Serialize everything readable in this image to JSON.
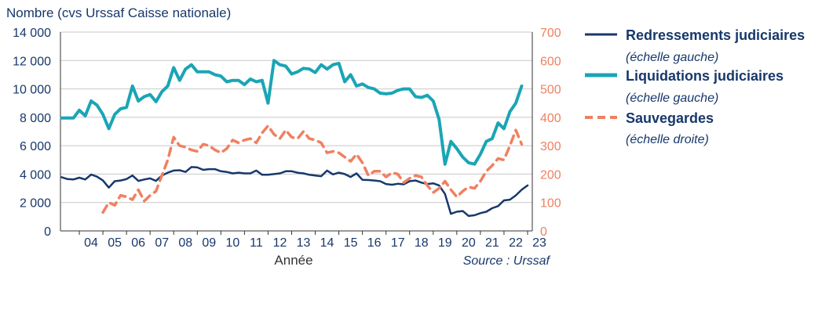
{
  "chart_data": {
    "type": "line",
    "ylabel": "Nombre (cvs Urssaf Caisse nationale)",
    "xlabel": "Année",
    "source": "Source : Urssaf",
    "ylim": [
      0,
      14000
    ],
    "y2lim": [
      0,
      700
    ],
    "yticks": [
      "0",
      "2 000",
      "4 000",
      "6 000",
      "8 000",
      "10 000",
      "12 000",
      "14 000"
    ],
    "y2ticks": [
      "0",
      "100",
      "200",
      "300",
      "400",
      "500",
      "600",
      "700"
    ],
    "xticks": [
      "04",
      "05",
      "06",
      "07",
      "08",
      "09",
      "10",
      "11",
      "12",
      "13",
      "14",
      "15",
      "16",
      "17",
      "18",
      "19",
      "20",
      "21",
      "22",
      "23"
    ],
    "xlim": [
      2003.2,
      2023.2
    ],
    "grid": true,
    "legend_position": "right",
    "series": [
      {
        "name": "Redressements judiciaires",
        "subtitle": "(échelle gauche)",
        "axis": "left",
        "color": "#17386b",
        "style": "solid",
        "points": [
          [
            2003.25,
            3780
          ],
          [
            2003.5,
            3650
          ],
          [
            2003.75,
            3620
          ],
          [
            2004.0,
            3750
          ],
          [
            2004.25,
            3620
          ],
          [
            2004.5,
            3970
          ],
          [
            2004.75,
            3820
          ],
          [
            2005.0,
            3550
          ],
          [
            2005.25,
            3050
          ],
          [
            2005.5,
            3500
          ],
          [
            2005.75,
            3550
          ],
          [
            2006.0,
            3650
          ],
          [
            2006.25,
            3900
          ],
          [
            2006.5,
            3520
          ],
          [
            2006.75,
            3620
          ],
          [
            2007.0,
            3700
          ],
          [
            2007.25,
            3520
          ],
          [
            2007.5,
            3900
          ],
          [
            2007.75,
            4100
          ],
          [
            2008.0,
            4250
          ],
          [
            2008.25,
            4270
          ],
          [
            2008.5,
            4150
          ],
          [
            2008.75,
            4500
          ],
          [
            2009.0,
            4470
          ],
          [
            2009.25,
            4300
          ],
          [
            2009.5,
            4350
          ],
          [
            2009.75,
            4350
          ],
          [
            2010.0,
            4200
          ],
          [
            2010.25,
            4150
          ],
          [
            2010.5,
            4050
          ],
          [
            2010.75,
            4100
          ],
          [
            2011.0,
            4050
          ],
          [
            2011.25,
            4050
          ],
          [
            2011.5,
            4250
          ],
          [
            2011.75,
            3950
          ],
          [
            2012.0,
            3950
          ],
          [
            2012.25,
            4000
          ],
          [
            2012.5,
            4050
          ],
          [
            2012.75,
            4200
          ],
          [
            2013.0,
            4200
          ],
          [
            2013.25,
            4100
          ],
          [
            2013.5,
            4050
          ],
          [
            2013.75,
            3950
          ],
          [
            2014.0,
            3900
          ],
          [
            2014.25,
            3850
          ],
          [
            2014.5,
            4250
          ],
          [
            2014.75,
            3980
          ],
          [
            2015.0,
            4100
          ],
          [
            2015.25,
            4000
          ],
          [
            2015.5,
            3800
          ],
          [
            2015.75,
            4050
          ],
          [
            2016.0,
            3600
          ],
          [
            2016.25,
            3580
          ],
          [
            2016.5,
            3550
          ],
          [
            2016.75,
            3500
          ],
          [
            2017.0,
            3300
          ],
          [
            2017.25,
            3250
          ],
          [
            2017.5,
            3320
          ],
          [
            2017.75,
            3280
          ],
          [
            2018.0,
            3500
          ],
          [
            2018.25,
            3550
          ],
          [
            2018.5,
            3400
          ],
          [
            2018.75,
            3300
          ],
          [
            2019.0,
            3350
          ],
          [
            2019.25,
            3200
          ],
          [
            2019.5,
            2600
          ],
          [
            2019.75,
            1200
          ],
          [
            2020.0,
            1350
          ],
          [
            2020.25,
            1400
          ],
          [
            2020.5,
            1050
          ],
          [
            2020.75,
            1100
          ],
          [
            2021.0,
            1250
          ],
          [
            2021.25,
            1350
          ],
          [
            2021.5,
            1600
          ],
          [
            2021.75,
            1750
          ],
          [
            2022.0,
            2150
          ],
          [
            2022.25,
            2200
          ],
          [
            2022.5,
            2500
          ],
          [
            2022.75,
            2900
          ],
          [
            2023.0,
            3200
          ]
        ]
      },
      {
        "name": "Liquidations judiciaires",
        "subtitle": "(échelle gauche)",
        "axis": "left",
        "color": "#1aa5b5",
        "style": "solid",
        "points": [
          [
            2003.25,
            7950
          ],
          [
            2003.5,
            7950
          ],
          [
            2003.75,
            7950
          ],
          [
            2004.0,
            8500
          ],
          [
            2004.25,
            8100
          ],
          [
            2004.5,
            9150
          ],
          [
            2004.75,
            8850
          ],
          [
            2005.0,
            8200
          ],
          [
            2005.25,
            7200
          ],
          [
            2005.5,
            8200
          ],
          [
            2005.75,
            8600
          ],
          [
            2006.0,
            8700
          ],
          [
            2006.25,
            10200
          ],
          [
            2006.5,
            9150
          ],
          [
            2006.75,
            9450
          ],
          [
            2007.0,
            9600
          ],
          [
            2007.25,
            9100
          ],
          [
            2007.5,
            9800
          ],
          [
            2007.75,
            10200
          ],
          [
            2008.0,
            11500
          ],
          [
            2008.25,
            10600
          ],
          [
            2008.5,
            11400
          ],
          [
            2008.75,
            11700
          ],
          [
            2009.0,
            11200
          ],
          [
            2009.25,
            11200
          ],
          [
            2009.5,
            11200
          ],
          [
            2009.75,
            11000
          ],
          [
            2010.0,
            10900
          ],
          [
            2010.25,
            10500
          ],
          [
            2010.5,
            10600
          ],
          [
            2010.75,
            10600
          ],
          [
            2011.0,
            10300
          ],
          [
            2011.25,
            10700
          ],
          [
            2011.5,
            10500
          ],
          [
            2011.75,
            10600
          ],
          [
            2012.0,
            9000
          ],
          [
            2012.25,
            12000
          ],
          [
            2012.5,
            11700
          ],
          [
            2012.75,
            11600
          ],
          [
            2013.0,
            11050
          ],
          [
            2013.25,
            11200
          ],
          [
            2013.5,
            11450
          ],
          [
            2013.75,
            11400
          ],
          [
            2014.0,
            11150
          ],
          [
            2014.25,
            11700
          ],
          [
            2014.5,
            11400
          ],
          [
            2014.75,
            11700
          ],
          [
            2015.0,
            11800
          ],
          [
            2015.25,
            10500
          ],
          [
            2015.5,
            11000
          ],
          [
            2015.75,
            10200
          ],
          [
            2016.0,
            10350
          ],
          [
            2016.25,
            10100
          ],
          [
            2016.5,
            10000
          ],
          [
            2016.75,
            9700
          ],
          [
            2017.0,
            9650
          ],
          [
            2017.25,
            9700
          ],
          [
            2017.5,
            9900
          ],
          [
            2017.75,
            10000
          ],
          [
            2018.0,
            10000
          ],
          [
            2018.25,
            9450
          ],
          [
            2018.5,
            9400
          ],
          [
            2018.75,
            9550
          ],
          [
            2019.0,
            9150
          ],
          [
            2019.25,
            7850
          ],
          [
            2019.5,
            4700
          ],
          [
            2019.75,
            6300
          ],
          [
            2020.0,
            5800
          ],
          [
            2020.25,
            5200
          ],
          [
            2020.5,
            4800
          ],
          [
            2020.75,
            4700
          ],
          [
            2021.0,
            5400
          ],
          [
            2021.25,
            6300
          ],
          [
            2021.5,
            6500
          ],
          [
            2021.75,
            7600
          ],
          [
            2022.0,
            7200
          ],
          [
            2022.25,
            8400
          ],
          [
            2022.5,
            9000
          ],
          [
            2022.75,
            10200
          ]
        ]
      },
      {
        "name": "Sauvegardes",
        "subtitle": "(échelle droite)",
        "axis": "right",
        "color": "#f08060",
        "style": "dashed",
        "points": [
          [
            2005.0,
            65
          ],
          [
            2005.25,
            100
          ],
          [
            2005.5,
            90
          ],
          [
            2005.75,
            125
          ],
          [
            2006.0,
            120
          ],
          [
            2006.25,
            110
          ],
          [
            2006.5,
            145
          ],
          [
            2006.75,
            105
          ],
          [
            2007.0,
            125
          ],
          [
            2007.25,
            140
          ],
          [
            2007.5,
            195
          ],
          [
            2007.75,
            250
          ],
          [
            2008.0,
            330
          ],
          [
            2008.25,
            300
          ],
          [
            2008.5,
            295
          ],
          [
            2008.75,
            285
          ],
          [
            2009.0,
            280
          ],
          [
            2009.25,
            305
          ],
          [
            2009.5,
            300
          ],
          [
            2009.75,
            285
          ],
          [
            2010.0,
            275
          ],
          [
            2010.25,
            290
          ],
          [
            2010.5,
            320
          ],
          [
            2010.75,
            310
          ],
          [
            2011.0,
            320
          ],
          [
            2011.25,
            325
          ],
          [
            2011.5,
            310
          ],
          [
            2011.75,
            345
          ],
          [
            2012.0,
            370
          ],
          [
            2012.25,
            340
          ],
          [
            2012.5,
            325
          ],
          [
            2012.75,
            355
          ],
          [
            2013.0,
            330
          ],
          [
            2013.25,
            325
          ],
          [
            2013.5,
            350
          ],
          [
            2013.75,
            325
          ],
          [
            2014.0,
            320
          ],
          [
            2014.25,
            310
          ],
          [
            2014.5,
            275
          ],
          [
            2014.75,
            280
          ],
          [
            2015.0,
            275
          ],
          [
            2015.25,
            260
          ],
          [
            2015.5,
            245
          ],
          [
            2015.75,
            270
          ],
          [
            2016.0,
            240
          ],
          [
            2016.25,
            195
          ],
          [
            2016.5,
            210
          ],
          [
            2016.75,
            210
          ],
          [
            2017.0,
            190
          ],
          [
            2017.25,
            205
          ],
          [
            2017.5,
            200
          ],
          [
            2017.75,
            170
          ],
          [
            2018.0,
            185
          ],
          [
            2018.25,
            195
          ],
          [
            2018.5,
            190
          ],
          [
            2018.75,
            160
          ],
          [
            2019.0,
            135
          ],
          [
            2019.25,
            150
          ],
          [
            2019.5,
            175
          ],
          [
            2019.75,
            145
          ],
          [
            2020.0,
            120
          ],
          [
            2020.25,
            140
          ],
          [
            2020.5,
            155
          ],
          [
            2020.75,
            150
          ],
          [
            2021.0,
            175
          ],
          [
            2021.25,
            210
          ],
          [
            2021.5,
            230
          ],
          [
            2021.75,
            255
          ],
          [
            2022.0,
            250
          ],
          [
            2022.25,
            300
          ],
          [
            2022.5,
            355
          ],
          [
            2022.75,
            305
          ]
        ]
      }
    ]
  }
}
